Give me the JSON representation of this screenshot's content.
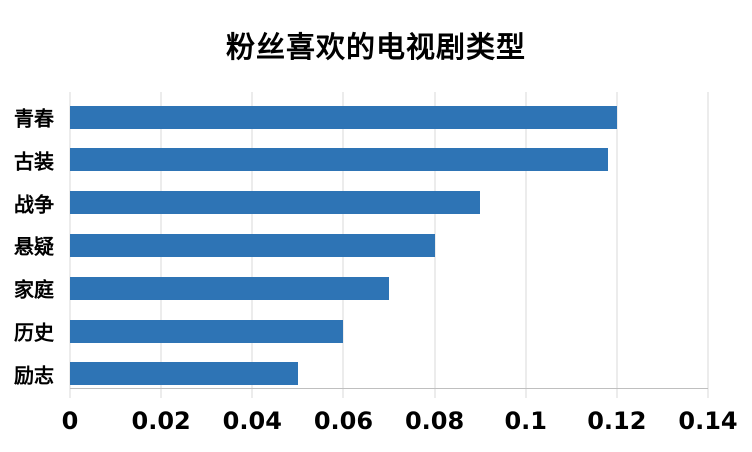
{
  "title": "粉丝喜欢的电视剧类型",
  "colors": {
    "bar": "#2e74b5",
    "gridline": "#d9d9d9",
    "axis_line": "#bfbfbf",
    "text": "#000000",
    "background": "#ffffff"
  },
  "chart_data": {
    "type": "bar",
    "orientation": "horizontal",
    "title": "粉丝喜欢的电视剧类型",
    "categories": [
      "青春",
      "古装",
      "战争",
      "悬疑",
      "家庭",
      "历史",
      "励志"
    ],
    "values": [
      0.12,
      0.118,
      0.09,
      0.08,
      0.07,
      0.06,
      0.05
    ],
    "xlabel": "",
    "ylabel": "",
    "xlim": [
      0,
      0.14
    ],
    "x_ticks": [
      0,
      0.02,
      0.04,
      0.06,
      0.08,
      0.1,
      0.12,
      0.14
    ],
    "x_tick_labels": [
      "0",
      "0.02",
      "0.04",
      "0.06",
      "0.08",
      "0.1",
      "0.12",
      "0.14"
    ],
    "grid": true,
    "legend": false
  }
}
